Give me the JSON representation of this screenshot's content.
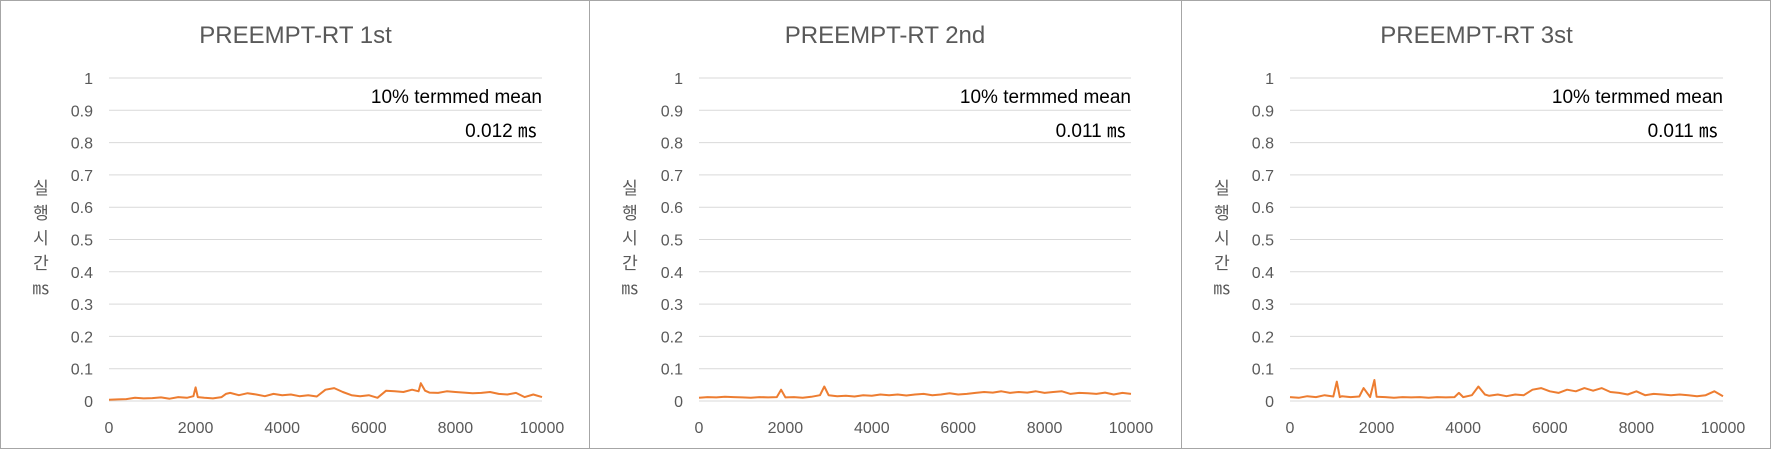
{
  "chart_data": [
    {
      "type": "line",
      "title": "PREEMPT-RT 1st",
      "ylabel": "실행시간 ㎳",
      "ylabel_chars": [
        "실",
        "행",
        "시",
        "간",
        "㎳"
      ],
      "xlim": [
        0,
        10000
      ],
      "ylim": [
        0,
        1
      ],
      "x_ticks": [
        "0",
        "2000",
        "4000",
        "6000",
        "8000",
        "10000"
      ],
      "y_ticks": [
        "0",
        "0.1",
        "0.2",
        "0.3",
        "0.4",
        "0.5",
        "0.6",
        "0.7",
        "0.8",
        "0.9",
        "1"
      ],
      "grid": true,
      "legend": "none",
      "annotation_label": "10% termmed mean",
      "annotation_value": "0.012 ㎳",
      "color": "#ed7d31",
      "series": [
        {
          "x": [
            0,
            200,
            400,
            600,
            800,
            1000,
            1200,
            1400,
            1600,
            1800,
            1950,
            2000,
            2050,
            2200,
            2400,
            2600,
            2700,
            2800,
            3000,
            3200,
            3400,
            3600,
            3800,
            4000,
            4200,
            4400,
            4600,
            4800,
            5000,
            5200,
            5400,
            5600,
            5800,
            6000,
            6200,
            6400,
            6600,
            6800,
            7000,
            7150,
            7200,
            7300,
            7400,
            7600,
            7800,
            8000,
            8200,
            8400,
            8600,
            8800,
            9000,
            9200,
            9400,
            9600,
            9800,
            10000
          ],
          "y": [
            0.004,
            0.005,
            0.006,
            0.01,
            0.008,
            0.009,
            0.011,
            0.007,
            0.012,
            0.01,
            0.015,
            0.042,
            0.012,
            0.01,
            0.008,
            0.012,
            0.022,
            0.025,
            0.018,
            0.024,
            0.02,
            0.015,
            0.022,
            0.018,
            0.02,
            0.015,
            0.018,
            0.014,
            0.035,
            0.04,
            0.028,
            0.018,
            0.015,
            0.018,
            0.01,
            0.032,
            0.03,
            0.028,
            0.035,
            0.03,
            0.055,
            0.032,
            0.026,
            0.025,
            0.03,
            0.028,
            0.026,
            0.024,
            0.025,
            0.028,
            0.022,
            0.02,
            0.025,
            0.012,
            0.02,
            0.012
          ]
        }
      ]
    },
    {
      "type": "line",
      "title": "PREEMPT-RT 2nd",
      "ylabel": "실행시간 ㎳",
      "ylabel_chars": [
        "실",
        "행",
        "시",
        "간",
        "㎳"
      ],
      "xlim": [
        0,
        10000
      ],
      "ylim": [
        0,
        1
      ],
      "x_ticks": [
        "0",
        "2000",
        "4000",
        "6000",
        "8000",
        "10000"
      ],
      "y_ticks": [
        "0",
        "0.1",
        "0.2",
        "0.3",
        "0.4",
        "0.5",
        "0.6",
        "0.7",
        "0.8",
        "0.9",
        "1"
      ],
      "grid": true,
      "legend": "none",
      "annotation_label": "10% termmed mean",
      "annotation_value": "0.011 ㎳",
      "color": "#ed7d31",
      "series": [
        {
          "x": [
            0,
            200,
            400,
            600,
            800,
            1000,
            1200,
            1400,
            1600,
            1800,
            1900,
            2000,
            2200,
            2400,
            2600,
            2800,
            2900,
            3000,
            3200,
            3400,
            3600,
            3800,
            4000,
            4200,
            4400,
            4600,
            4800,
            5000,
            5200,
            5400,
            5600,
            5800,
            6000,
            6200,
            6400,
            6600,
            6800,
            7000,
            7200,
            7400,
            7600,
            7800,
            8000,
            8200,
            8400,
            8600,
            8800,
            9000,
            9200,
            9400,
            9600,
            9800,
            10000
          ],
          "y": [
            0.01,
            0.012,
            0.011,
            0.013,
            0.012,
            0.011,
            0.01,
            0.012,
            0.011,
            0.012,
            0.035,
            0.011,
            0.012,
            0.01,
            0.013,
            0.018,
            0.045,
            0.018,
            0.015,
            0.016,
            0.014,
            0.018,
            0.016,
            0.02,
            0.018,
            0.02,
            0.017,
            0.02,
            0.022,
            0.018,
            0.02,
            0.024,
            0.02,
            0.022,
            0.025,
            0.028,
            0.026,
            0.03,
            0.025,
            0.028,
            0.026,
            0.03,
            0.025,
            0.028,
            0.03,
            0.022,
            0.025,
            0.024,
            0.022,
            0.026,
            0.02,
            0.025,
            0.022
          ]
        }
      ]
    },
    {
      "type": "line",
      "title": "PREEMPT-RT 3st",
      "ylabel": "실행시간 ㎳",
      "ylabel_chars": [
        "실",
        "행",
        "시",
        "간",
        "㎳"
      ],
      "xlim": [
        0,
        10000
      ],
      "ylim": [
        0,
        1
      ],
      "x_ticks": [
        "0",
        "2000",
        "4000",
        "6000",
        "8000",
        "10000"
      ],
      "y_ticks": [
        "0",
        "0.1",
        "0.2",
        "0.3",
        "0.4",
        "0.5",
        "0.6",
        "0.7",
        "0.8",
        "0.9",
        "1"
      ],
      "grid": true,
      "legend": "none",
      "annotation_label": "10% termmed mean",
      "annotation_value": "0.011 ㎳",
      "color": "#ed7d31",
      "series": [
        {
          "x": [
            0,
            200,
            400,
            600,
            800,
            1000,
            1080,
            1150,
            1200,
            1400,
            1600,
            1700,
            1850,
            1950,
            2000,
            2200,
            2400,
            2600,
            2800,
            3000,
            3200,
            3400,
            3600,
            3800,
            3900,
            4000,
            4200,
            4350,
            4500,
            4600,
            4800,
            5000,
            5200,
            5400,
            5600,
            5800,
            6000,
            6200,
            6400,
            6600,
            6800,
            7000,
            7200,
            7400,
            7600,
            7800,
            8000,
            8200,
            8400,
            8600,
            8800,
            9000,
            9200,
            9400,
            9600,
            9800,
            10000
          ],
          "y": [
            0.012,
            0.01,
            0.015,
            0.012,
            0.018,
            0.014,
            0.06,
            0.012,
            0.015,
            0.012,
            0.014,
            0.04,
            0.012,
            0.065,
            0.013,
            0.012,
            0.01,
            0.012,
            0.011,
            0.012,
            0.01,
            0.012,
            0.011,
            0.012,
            0.025,
            0.012,
            0.018,
            0.045,
            0.02,
            0.016,
            0.02,
            0.015,
            0.02,
            0.018,
            0.035,
            0.04,
            0.03,
            0.025,
            0.035,
            0.03,
            0.04,
            0.032,
            0.04,
            0.028,
            0.025,
            0.02,
            0.03,
            0.018,
            0.022,
            0.02,
            0.018,
            0.02,
            0.018,
            0.015,
            0.018,
            0.03,
            0.015
          ]
        }
      ]
    }
  ]
}
